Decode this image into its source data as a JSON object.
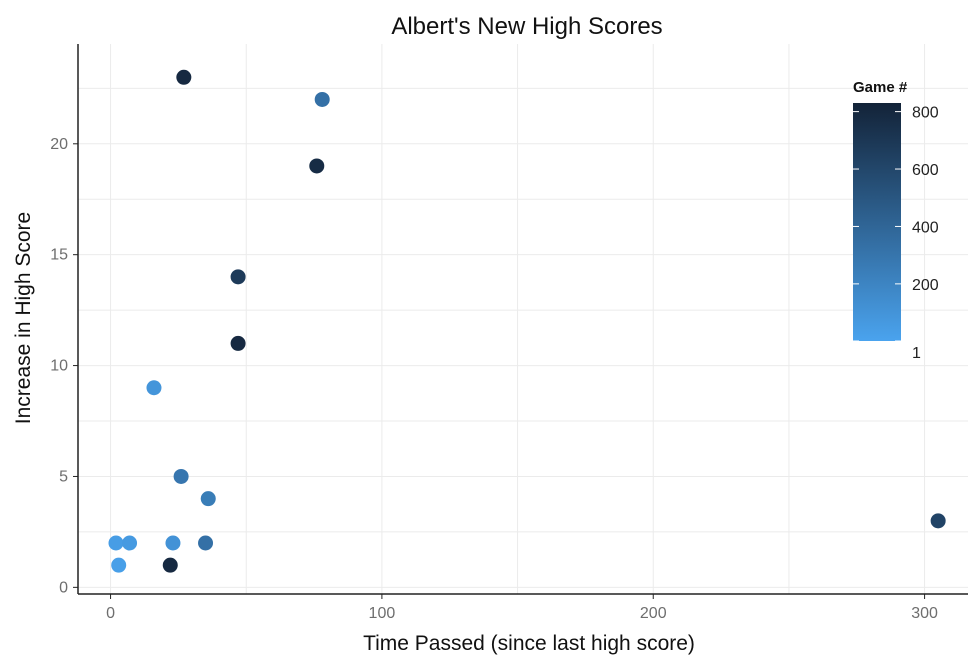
{
  "colors": {
    "low": "#4aa3ee",
    "high": "#132338",
    "grid": "#ebebeb",
    "axis": "#222222"
  },
  "chart_data": {
    "type": "scatter",
    "title": "Albert's New High Scores",
    "xlabel": "Time Passed (since last high score)",
    "ylabel": "Increase in High Score",
    "xlim": [
      -12,
      316
    ],
    "ylim": [
      -0.3,
      24.5
    ],
    "x_ticks": [
      0,
      100,
      200,
      300
    ],
    "y_ticks": [
      0,
      5,
      10,
      15,
      20
    ],
    "grid": true,
    "legend": {
      "title": "Game #",
      "placement": "top-right",
      "labels": [
        "800",
        "600",
        "400",
        "200",
        "1"
      ],
      "values": [
        800,
        600,
        400,
        200,
        1
      ],
      "range": [
        1,
        830
      ]
    },
    "points": [
      {
        "x": 27,
        "y": 23,
        "game": 790
      },
      {
        "x": 78,
        "y": 22,
        "game": 330
      },
      {
        "x": 76,
        "y": 19,
        "game": 770
      },
      {
        "x": 47,
        "y": 14,
        "game": 680
      },
      {
        "x": 47,
        "y": 11,
        "game": 790
      },
      {
        "x": 16,
        "y": 9,
        "game": 90
      },
      {
        "x": 26,
        "y": 5,
        "game": 290
      },
      {
        "x": 36,
        "y": 4,
        "game": 250
      },
      {
        "x": 2,
        "y": 2,
        "game": 40
      },
      {
        "x": 7,
        "y": 2,
        "game": 60
      },
      {
        "x": 23,
        "y": 2,
        "game": 110
      },
      {
        "x": 35,
        "y": 2,
        "game": 330
      },
      {
        "x": 3,
        "y": 1,
        "game": 30
      },
      {
        "x": 22,
        "y": 1,
        "game": 790
      },
      {
        "x": 305,
        "y": 3,
        "game": 620
      }
    ]
  }
}
